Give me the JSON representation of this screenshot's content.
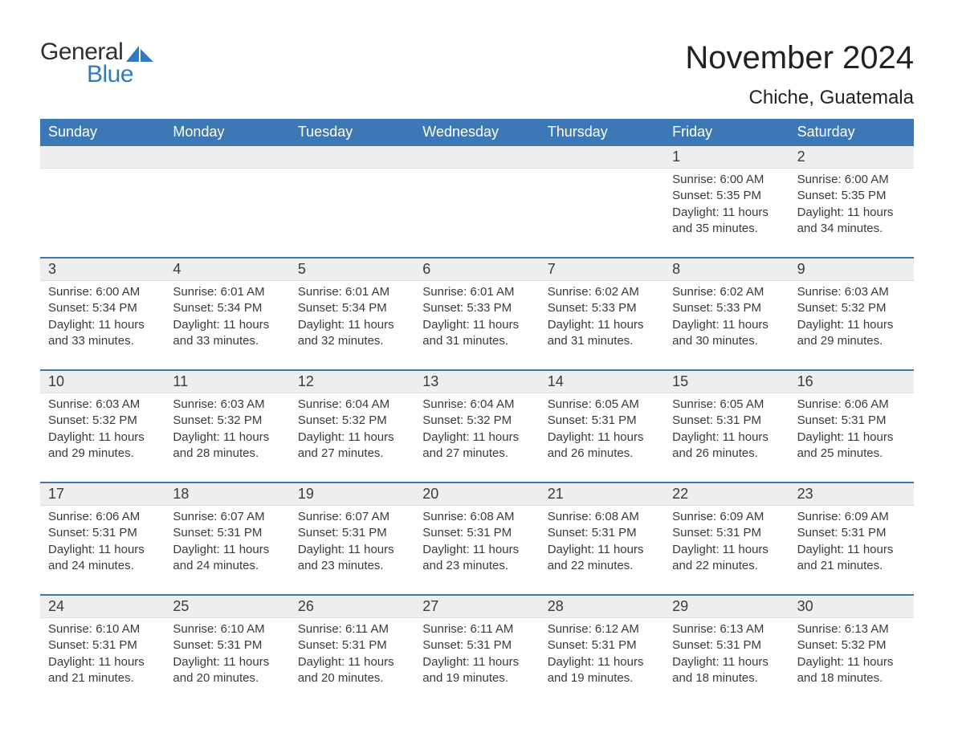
{
  "logo": {
    "word1": "General",
    "word2": "Blue"
  },
  "title": "November 2024",
  "location": "Chiche, Guatemala",
  "colors": {
    "header_blue": "#3b78b5",
    "logo_blue": "#2f7bc2",
    "row_border": "#3b78b5",
    "daybar_bg": "#eeeeee",
    "text_dark": "#2f2f2f",
    "background": "#ffffff"
  },
  "days_of_week": [
    "Sunday",
    "Monday",
    "Tuesday",
    "Wednesday",
    "Thursday",
    "Friday",
    "Saturday"
  ],
  "weeks": [
    [
      null,
      null,
      null,
      null,
      null,
      {
        "n": "1",
        "sunrise": "Sunrise: 6:00 AM",
        "sunset": "Sunset: 5:35 PM",
        "day1": "Daylight: 11 hours",
        "day2": "and 35 minutes."
      },
      {
        "n": "2",
        "sunrise": "Sunrise: 6:00 AM",
        "sunset": "Sunset: 5:35 PM",
        "day1": "Daylight: 11 hours",
        "day2": "and 34 minutes."
      }
    ],
    [
      {
        "n": "3",
        "sunrise": "Sunrise: 6:00 AM",
        "sunset": "Sunset: 5:34 PM",
        "day1": "Daylight: 11 hours",
        "day2": "and 33 minutes."
      },
      {
        "n": "4",
        "sunrise": "Sunrise: 6:01 AM",
        "sunset": "Sunset: 5:34 PM",
        "day1": "Daylight: 11 hours",
        "day2": "and 33 minutes."
      },
      {
        "n": "5",
        "sunrise": "Sunrise: 6:01 AM",
        "sunset": "Sunset: 5:34 PM",
        "day1": "Daylight: 11 hours",
        "day2": "and 32 minutes."
      },
      {
        "n": "6",
        "sunrise": "Sunrise: 6:01 AM",
        "sunset": "Sunset: 5:33 PM",
        "day1": "Daylight: 11 hours",
        "day2": "and 31 minutes."
      },
      {
        "n": "7",
        "sunrise": "Sunrise: 6:02 AM",
        "sunset": "Sunset: 5:33 PM",
        "day1": "Daylight: 11 hours",
        "day2": "and 31 minutes."
      },
      {
        "n": "8",
        "sunrise": "Sunrise: 6:02 AM",
        "sunset": "Sunset: 5:33 PM",
        "day1": "Daylight: 11 hours",
        "day2": "and 30 minutes."
      },
      {
        "n": "9",
        "sunrise": "Sunrise: 6:03 AM",
        "sunset": "Sunset: 5:32 PM",
        "day1": "Daylight: 11 hours",
        "day2": "and 29 minutes."
      }
    ],
    [
      {
        "n": "10",
        "sunrise": "Sunrise: 6:03 AM",
        "sunset": "Sunset: 5:32 PM",
        "day1": "Daylight: 11 hours",
        "day2": "and 29 minutes."
      },
      {
        "n": "11",
        "sunrise": "Sunrise: 6:03 AM",
        "sunset": "Sunset: 5:32 PM",
        "day1": "Daylight: 11 hours",
        "day2": "and 28 minutes."
      },
      {
        "n": "12",
        "sunrise": "Sunrise: 6:04 AM",
        "sunset": "Sunset: 5:32 PM",
        "day1": "Daylight: 11 hours",
        "day2": "and 27 minutes."
      },
      {
        "n": "13",
        "sunrise": "Sunrise: 6:04 AM",
        "sunset": "Sunset: 5:32 PM",
        "day1": "Daylight: 11 hours",
        "day2": "and 27 minutes."
      },
      {
        "n": "14",
        "sunrise": "Sunrise: 6:05 AM",
        "sunset": "Sunset: 5:31 PM",
        "day1": "Daylight: 11 hours",
        "day2": "and 26 minutes."
      },
      {
        "n": "15",
        "sunrise": "Sunrise: 6:05 AM",
        "sunset": "Sunset: 5:31 PM",
        "day1": "Daylight: 11 hours",
        "day2": "and 26 minutes."
      },
      {
        "n": "16",
        "sunrise": "Sunrise: 6:06 AM",
        "sunset": "Sunset: 5:31 PM",
        "day1": "Daylight: 11 hours",
        "day2": "and 25 minutes."
      }
    ],
    [
      {
        "n": "17",
        "sunrise": "Sunrise: 6:06 AM",
        "sunset": "Sunset: 5:31 PM",
        "day1": "Daylight: 11 hours",
        "day2": "and 24 minutes."
      },
      {
        "n": "18",
        "sunrise": "Sunrise: 6:07 AM",
        "sunset": "Sunset: 5:31 PM",
        "day1": "Daylight: 11 hours",
        "day2": "and 24 minutes."
      },
      {
        "n": "19",
        "sunrise": "Sunrise: 6:07 AM",
        "sunset": "Sunset: 5:31 PM",
        "day1": "Daylight: 11 hours",
        "day2": "and 23 minutes."
      },
      {
        "n": "20",
        "sunrise": "Sunrise: 6:08 AM",
        "sunset": "Sunset: 5:31 PM",
        "day1": "Daylight: 11 hours",
        "day2": "and 23 minutes."
      },
      {
        "n": "21",
        "sunrise": "Sunrise: 6:08 AM",
        "sunset": "Sunset: 5:31 PM",
        "day1": "Daylight: 11 hours",
        "day2": "and 22 minutes."
      },
      {
        "n": "22",
        "sunrise": "Sunrise: 6:09 AM",
        "sunset": "Sunset: 5:31 PM",
        "day1": "Daylight: 11 hours",
        "day2": "and 22 minutes."
      },
      {
        "n": "23",
        "sunrise": "Sunrise: 6:09 AM",
        "sunset": "Sunset: 5:31 PM",
        "day1": "Daylight: 11 hours",
        "day2": "and 21 minutes."
      }
    ],
    [
      {
        "n": "24",
        "sunrise": "Sunrise: 6:10 AM",
        "sunset": "Sunset: 5:31 PM",
        "day1": "Daylight: 11 hours",
        "day2": "and 21 minutes."
      },
      {
        "n": "25",
        "sunrise": "Sunrise: 6:10 AM",
        "sunset": "Sunset: 5:31 PM",
        "day1": "Daylight: 11 hours",
        "day2": "and 20 minutes."
      },
      {
        "n": "26",
        "sunrise": "Sunrise: 6:11 AM",
        "sunset": "Sunset: 5:31 PM",
        "day1": "Daylight: 11 hours",
        "day2": "and 20 minutes."
      },
      {
        "n": "27",
        "sunrise": "Sunrise: 6:11 AM",
        "sunset": "Sunset: 5:31 PM",
        "day1": "Daylight: 11 hours",
        "day2": "and 19 minutes."
      },
      {
        "n": "28",
        "sunrise": "Sunrise: 6:12 AM",
        "sunset": "Sunset: 5:31 PM",
        "day1": "Daylight: 11 hours",
        "day2": "and 19 minutes."
      },
      {
        "n": "29",
        "sunrise": "Sunrise: 6:13 AM",
        "sunset": "Sunset: 5:31 PM",
        "day1": "Daylight: 11 hours",
        "day2": "and 18 minutes."
      },
      {
        "n": "30",
        "sunrise": "Sunrise: 6:13 AM",
        "sunset": "Sunset: 5:32 PM",
        "day1": "Daylight: 11 hours",
        "day2": "and 18 minutes."
      }
    ]
  ]
}
